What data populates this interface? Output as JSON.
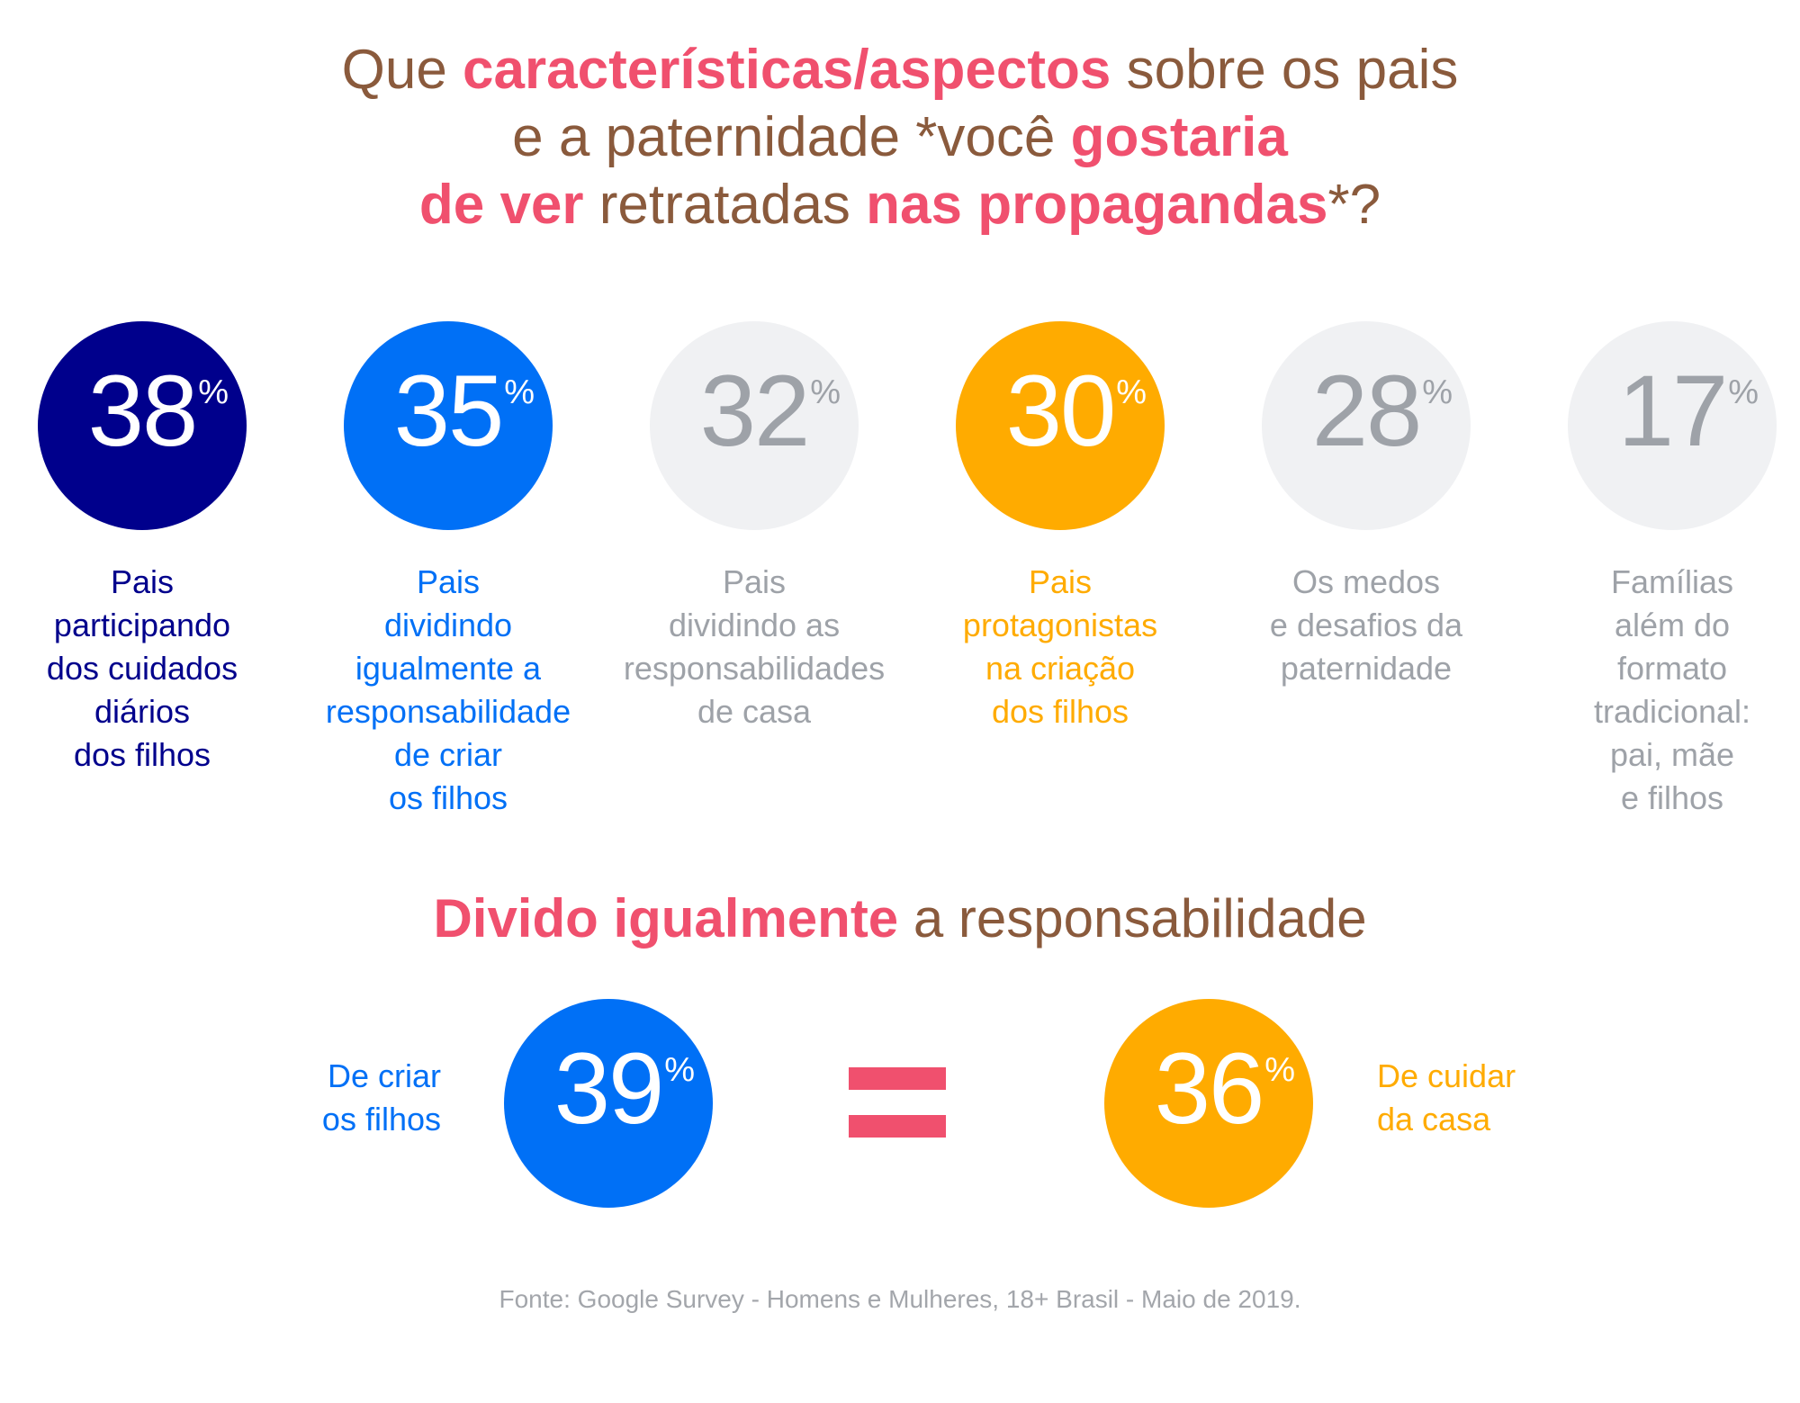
{
  "title": {
    "l1a": "Que ",
    "l1b": "características/aspectos",
    "l1c": " sobre os pais",
    "l2a": "e a paternidade *você ",
    "l2b": "gostaria",
    "l3a": "de ver",
    "l3b": " retratadas ",
    "l3c": "nas propagandas",
    "l3d": "*?"
  },
  "stats": [
    {
      "value": "38",
      "unit": "%",
      "label": "Pais\nparticipando\ndos cuidados\ndiários\ndos filhos"
    },
    {
      "value": "35",
      "unit": "%",
      "label": "Pais\ndividindo\nigualmente a\nresponsabilidade\nde criar\nos filhos"
    },
    {
      "value": "32",
      "unit": "%",
      "label": "Pais\ndividindo as\nresponsabilidades\nde casa"
    },
    {
      "value": "30",
      "unit": "%",
      "label": "Pais\nprotagonistas\nna criação\ndos filhos"
    },
    {
      "value": "28",
      "unit": "%",
      "label": "Os medos\ne desafios da\npaternidade"
    },
    {
      "value": "17",
      "unit": "%",
      "label": "Famílias\nalém do\nformato\ntradicional:\npai, mãe\ne filhos"
    }
  ],
  "subtitle": {
    "hl": "Divido igualmente",
    "rest": " a responsabilidade"
  },
  "compare": {
    "left": {
      "label": "De criar\nos filhos",
      "value": "39",
      "unit": "%"
    },
    "right": {
      "label": "De cuidar\nda casa",
      "value": "36",
      "unit": "%"
    },
    "symbol": "equals-sign"
  },
  "source": "Fonte: Google Survey - Homens e Mulheres, 18+ Brasil - Maio de 2019.",
  "colors": {
    "navy": "#00008c",
    "blue": "#0070f6",
    "grey": "#9ea2a8",
    "orange": "#ffab00",
    "pink": "#f0506e",
    "brown": "#8a5a3c"
  }
}
